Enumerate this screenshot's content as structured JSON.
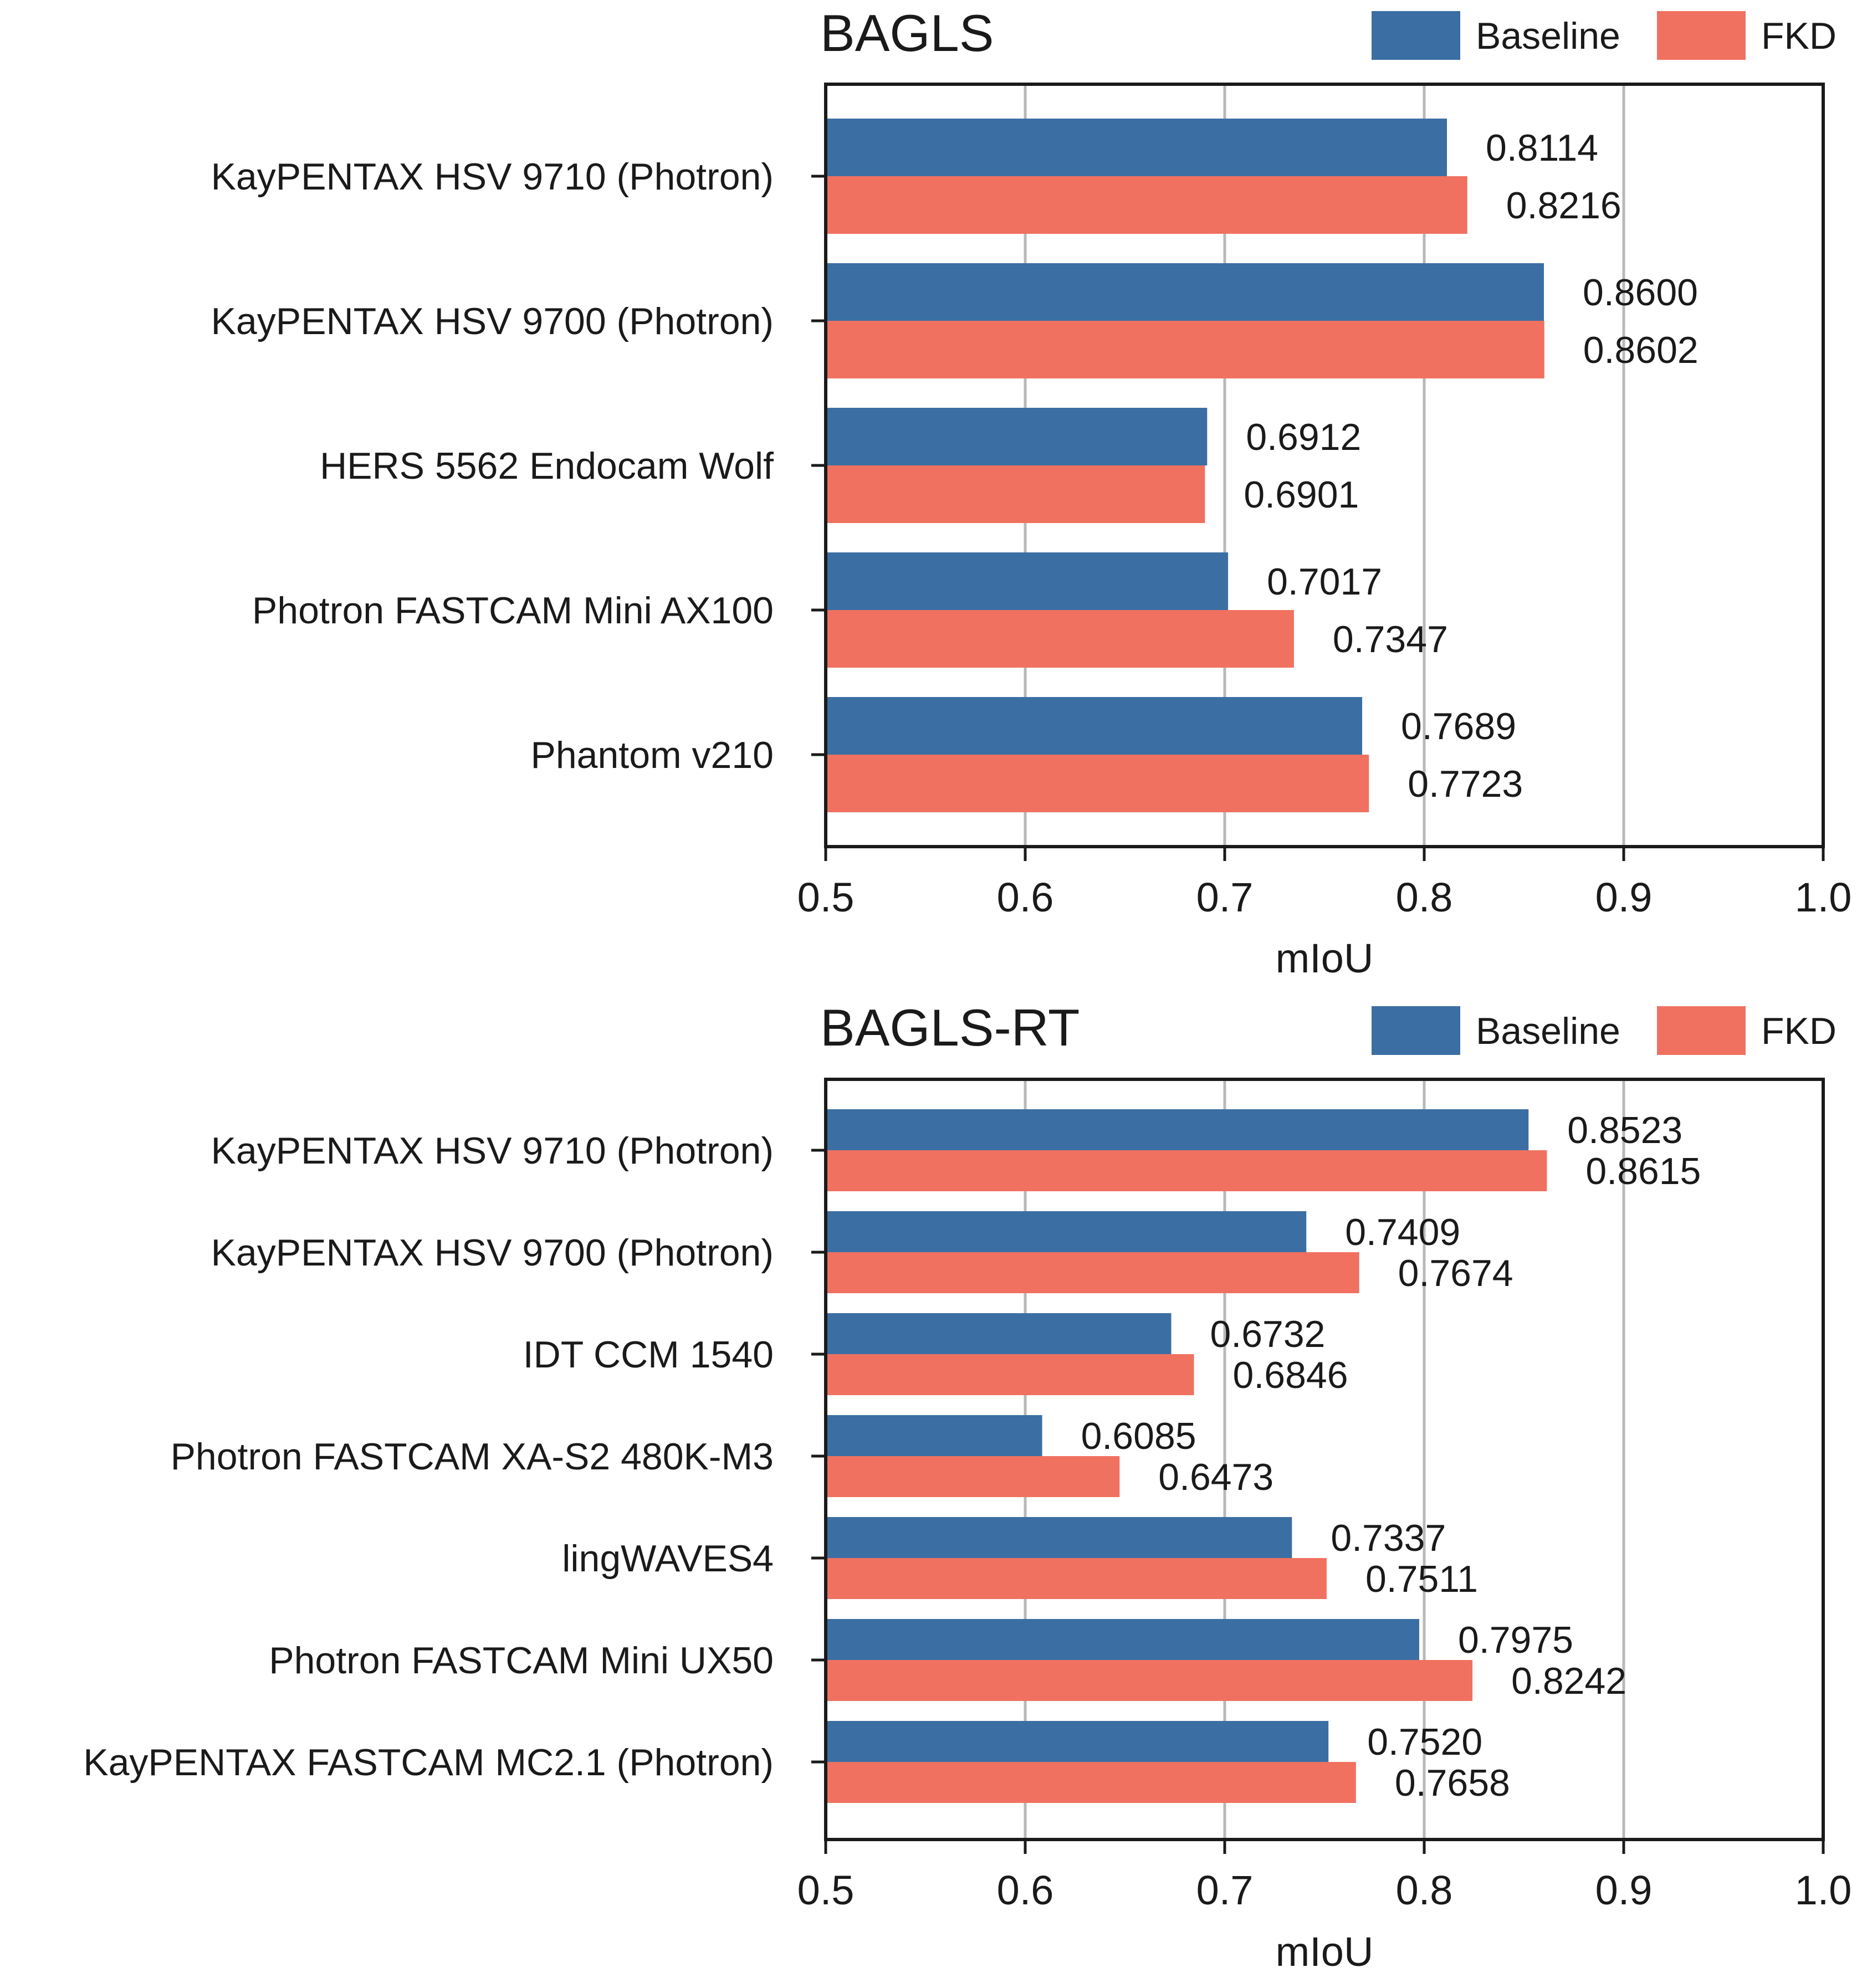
{
  "legend": {
    "baseline_label": "Baseline",
    "fkd_label": "FKD",
    "baseline_color": "#3b6fa3",
    "fkd_color": "#f07160"
  },
  "chart_data": [
    {
      "type": "bar",
      "orientation": "horizontal",
      "title": "BAGLS",
      "xlabel": "mIoU",
      "ylabel": "",
      "xlim": [
        0.5,
        1.0
      ],
      "xticks": [
        "0.5",
        "0.6",
        "0.7",
        "0.8",
        "0.9",
        "1.0"
      ],
      "grid": "vertical",
      "legend_position": "top-right",
      "categories": [
        "KayPENTAX HSV 9710 (Photron)",
        "KayPENTAX HSV 9700 (Photron)",
        "HERS 5562 Endocam Wolf",
        "Photron FASTCAM Mini AX100",
        "Phantom v210"
      ],
      "series": [
        {
          "name": "Baseline",
          "values": [
            0.8114,
            0.86,
            0.6912,
            0.7017,
            0.7689
          ],
          "labels": [
            "0.8114",
            "0.8600",
            "0.6912",
            "0.7017",
            "0.7689"
          ]
        },
        {
          "name": "FKD",
          "values": [
            0.8216,
            0.8602,
            0.6901,
            0.7347,
            0.7723
          ],
          "labels": [
            "0.8216",
            "0.8602",
            "0.6901",
            "0.7347",
            "0.7723"
          ]
        }
      ]
    },
    {
      "type": "bar",
      "orientation": "horizontal",
      "title": "BAGLS-RT",
      "xlabel": "mIoU",
      "ylabel": "",
      "xlim": [
        0.5,
        1.0
      ],
      "xticks": [
        "0.5",
        "0.6",
        "0.7",
        "0.8",
        "0.9",
        "1.0"
      ],
      "grid": "vertical",
      "legend_position": "top-right",
      "categories": [
        "KayPENTAX HSV 9710 (Photron)",
        "KayPENTAX HSV 9700 (Photron)",
        "IDT CCM 1540",
        "Photron FASTCAM XA-S2 480K-M3",
        "lingWAVES4",
        "Photron FASTCAM Mini UX50",
        "KayPENTAX FASTCAM MC2.1 (Photron)"
      ],
      "series": [
        {
          "name": "Baseline",
          "values": [
            0.8523,
            0.7409,
            0.6732,
            0.6085,
            0.7337,
            0.7975,
            0.752
          ],
          "labels": [
            "0.8523",
            "0.7409",
            "0.6732",
            "0.6085",
            "0.7337",
            "0.7975",
            "0.7520"
          ]
        },
        {
          "name": "FKD",
          "values": [
            0.8615,
            0.7674,
            0.6846,
            0.6473,
            0.7511,
            0.8242,
            0.7658
          ],
          "labels": [
            "0.8615",
            "0.7674",
            "0.6846",
            "0.6473",
            "0.7511",
            "0.8242",
            "0.7658"
          ]
        }
      ]
    }
  ]
}
